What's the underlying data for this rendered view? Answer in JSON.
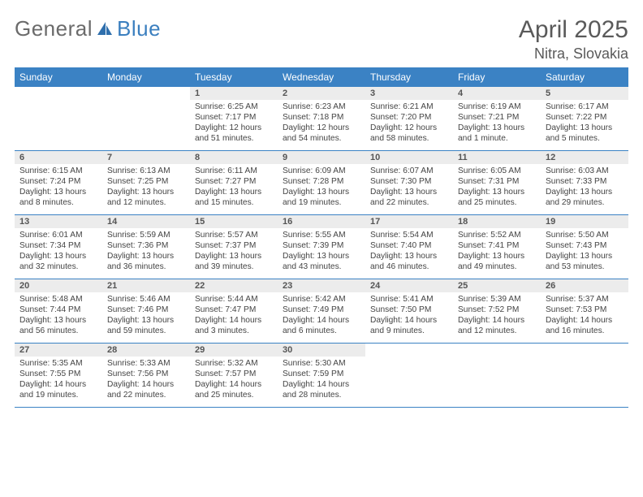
{
  "logo": {
    "general": "General",
    "blue": "Blue"
  },
  "title": "April 2025",
  "location": "Nitra, Slovakia",
  "dayNames": [
    "Sunday",
    "Monday",
    "Tuesday",
    "Wednesday",
    "Thursday",
    "Friday",
    "Saturday"
  ],
  "colors": {
    "headerBlue": "#3b82c4",
    "cellStripe": "#ececec",
    "textGray": "#5a5a5a"
  },
  "weeks": [
    [
      {
        "empty": true
      },
      {
        "empty": true
      },
      {
        "day": "1",
        "sunrise": "Sunrise: 6:25 AM",
        "sunset": "Sunset: 7:17 PM",
        "daylight": "Daylight: 12 hours and 51 minutes."
      },
      {
        "day": "2",
        "sunrise": "Sunrise: 6:23 AM",
        "sunset": "Sunset: 7:18 PM",
        "daylight": "Daylight: 12 hours and 54 minutes."
      },
      {
        "day": "3",
        "sunrise": "Sunrise: 6:21 AM",
        "sunset": "Sunset: 7:20 PM",
        "daylight": "Daylight: 12 hours and 58 minutes."
      },
      {
        "day": "4",
        "sunrise": "Sunrise: 6:19 AM",
        "sunset": "Sunset: 7:21 PM",
        "daylight": "Daylight: 13 hours and 1 minute."
      },
      {
        "day": "5",
        "sunrise": "Sunrise: 6:17 AM",
        "sunset": "Sunset: 7:22 PM",
        "daylight": "Daylight: 13 hours and 5 minutes."
      }
    ],
    [
      {
        "day": "6",
        "sunrise": "Sunrise: 6:15 AM",
        "sunset": "Sunset: 7:24 PM",
        "daylight": "Daylight: 13 hours and 8 minutes."
      },
      {
        "day": "7",
        "sunrise": "Sunrise: 6:13 AM",
        "sunset": "Sunset: 7:25 PM",
        "daylight": "Daylight: 13 hours and 12 minutes."
      },
      {
        "day": "8",
        "sunrise": "Sunrise: 6:11 AM",
        "sunset": "Sunset: 7:27 PM",
        "daylight": "Daylight: 13 hours and 15 minutes."
      },
      {
        "day": "9",
        "sunrise": "Sunrise: 6:09 AM",
        "sunset": "Sunset: 7:28 PM",
        "daylight": "Daylight: 13 hours and 19 minutes."
      },
      {
        "day": "10",
        "sunrise": "Sunrise: 6:07 AM",
        "sunset": "Sunset: 7:30 PM",
        "daylight": "Daylight: 13 hours and 22 minutes."
      },
      {
        "day": "11",
        "sunrise": "Sunrise: 6:05 AM",
        "sunset": "Sunset: 7:31 PM",
        "daylight": "Daylight: 13 hours and 25 minutes."
      },
      {
        "day": "12",
        "sunrise": "Sunrise: 6:03 AM",
        "sunset": "Sunset: 7:33 PM",
        "daylight": "Daylight: 13 hours and 29 minutes."
      }
    ],
    [
      {
        "day": "13",
        "sunrise": "Sunrise: 6:01 AM",
        "sunset": "Sunset: 7:34 PM",
        "daylight": "Daylight: 13 hours and 32 minutes."
      },
      {
        "day": "14",
        "sunrise": "Sunrise: 5:59 AM",
        "sunset": "Sunset: 7:36 PM",
        "daylight": "Daylight: 13 hours and 36 minutes."
      },
      {
        "day": "15",
        "sunrise": "Sunrise: 5:57 AM",
        "sunset": "Sunset: 7:37 PM",
        "daylight": "Daylight: 13 hours and 39 minutes."
      },
      {
        "day": "16",
        "sunrise": "Sunrise: 5:55 AM",
        "sunset": "Sunset: 7:39 PM",
        "daylight": "Daylight: 13 hours and 43 minutes."
      },
      {
        "day": "17",
        "sunrise": "Sunrise: 5:54 AM",
        "sunset": "Sunset: 7:40 PM",
        "daylight": "Daylight: 13 hours and 46 minutes."
      },
      {
        "day": "18",
        "sunrise": "Sunrise: 5:52 AM",
        "sunset": "Sunset: 7:41 PM",
        "daylight": "Daylight: 13 hours and 49 minutes."
      },
      {
        "day": "19",
        "sunrise": "Sunrise: 5:50 AM",
        "sunset": "Sunset: 7:43 PM",
        "daylight": "Daylight: 13 hours and 53 minutes."
      }
    ],
    [
      {
        "day": "20",
        "sunrise": "Sunrise: 5:48 AM",
        "sunset": "Sunset: 7:44 PM",
        "daylight": "Daylight: 13 hours and 56 minutes."
      },
      {
        "day": "21",
        "sunrise": "Sunrise: 5:46 AM",
        "sunset": "Sunset: 7:46 PM",
        "daylight": "Daylight: 13 hours and 59 minutes."
      },
      {
        "day": "22",
        "sunrise": "Sunrise: 5:44 AM",
        "sunset": "Sunset: 7:47 PM",
        "daylight": "Daylight: 14 hours and 3 minutes."
      },
      {
        "day": "23",
        "sunrise": "Sunrise: 5:42 AM",
        "sunset": "Sunset: 7:49 PM",
        "daylight": "Daylight: 14 hours and 6 minutes."
      },
      {
        "day": "24",
        "sunrise": "Sunrise: 5:41 AM",
        "sunset": "Sunset: 7:50 PM",
        "daylight": "Daylight: 14 hours and 9 minutes."
      },
      {
        "day": "25",
        "sunrise": "Sunrise: 5:39 AM",
        "sunset": "Sunset: 7:52 PM",
        "daylight": "Daylight: 14 hours and 12 minutes."
      },
      {
        "day": "26",
        "sunrise": "Sunrise: 5:37 AM",
        "sunset": "Sunset: 7:53 PM",
        "daylight": "Daylight: 14 hours and 16 minutes."
      }
    ],
    [
      {
        "day": "27",
        "sunrise": "Sunrise: 5:35 AM",
        "sunset": "Sunset: 7:55 PM",
        "daylight": "Daylight: 14 hours and 19 minutes."
      },
      {
        "day": "28",
        "sunrise": "Sunrise: 5:33 AM",
        "sunset": "Sunset: 7:56 PM",
        "daylight": "Daylight: 14 hours and 22 minutes."
      },
      {
        "day": "29",
        "sunrise": "Sunrise: 5:32 AM",
        "sunset": "Sunset: 7:57 PM",
        "daylight": "Daylight: 14 hours and 25 minutes."
      },
      {
        "day": "30",
        "sunrise": "Sunrise: 5:30 AM",
        "sunset": "Sunset: 7:59 PM",
        "daylight": "Daylight: 14 hours and 28 minutes."
      },
      {
        "empty": true
      },
      {
        "empty": true
      },
      {
        "empty": true
      }
    ]
  ]
}
